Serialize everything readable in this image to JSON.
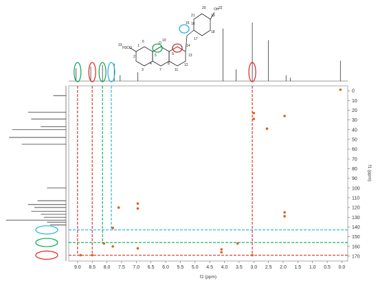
{
  "figure": {
    "x_axis_label": "f2 (ppm)",
    "y_axis_label": "f1 (ppm)"
  },
  "molecule": {
    "atom_labels": [
      "1",
      "2",
      "3",
      "4",
      "5",
      "6",
      "7",
      "8",
      "9",
      "10",
      "11",
      "12",
      "13",
      "14",
      "15",
      "16",
      "17",
      "18",
      "19",
      "20",
      "21",
      "22",
      "23"
    ],
    "methoxy_label": "H3CO",
    "methoxy_number": "23",
    "hydroxyl_label": "OH",
    "ring_oxygen": "O",
    "highlights": [
      {
        "atom": "5",
        "color": "#00a651"
      },
      {
        "atom": "9",
        "color": "#e0201b"
      },
      {
        "atom": "15",
        "color": "#1ab0e0"
      },
      {
        "atom": "19",
        "color": "#4a78c0"
      }
    ]
  },
  "chart_data": {
    "type": "scatter",
    "title": "",
    "xlabel": "f2 (ppm)",
    "ylabel": "f1 (ppm)",
    "xlim": [
      9.3,
      -0.2
    ],
    "ylim": [
      -5,
      175
    ],
    "x_ticks": [
      "9.0",
      "8.5",
      "8.0",
      "7.5",
      "7.0",
      "6.5",
      "6.0",
      "5.5",
      "5.0",
      "4.5",
      "4.0",
      "3.5",
      "3.0",
      "2.5",
      "2.0",
      "1.5",
      "1.0",
      "0.5",
      "0.0"
    ],
    "y_ticks": [
      "0",
      "10",
      "20",
      "30",
      "40",
      "50",
      "60",
      "70",
      "80",
      "90",
      "100",
      "110",
      "120",
      "130",
      "140",
      "150",
      "160",
      "170"
    ],
    "cross_peaks": [
      {
        "x": 0.05,
        "y": -1
      },
      {
        "x": 1.95,
        "y": 26
      },
      {
        "x": 2.55,
        "y": 39
      },
      {
        "x": 3.0,
        "y": 23
      },
      {
        "x": 3.0,
        "y": 29
      },
      {
        "x": 6.95,
        "y": 116
      },
      {
        "x": 6.95,
        "y": 121
      },
      {
        "x": 7.6,
        "y": 120
      },
      {
        "x": 7.8,
        "y": 141
      },
      {
        "x": 7.8,
        "y": 160
      },
      {
        "x": 8.1,
        "y": 157
      },
      {
        "x": 8.9,
        "y": 169
      },
      {
        "x": 8.5,
        "y": 169
      },
      {
        "x": 4.1,
        "y": 163
      },
      {
        "x": 4.1,
        "y": 166
      },
      {
        "x": 3.05,
        "y": 169
      },
      {
        "x": 1.95,
        "y": 125
      },
      {
        "x": 1.95,
        "y": 129
      },
      {
        "x": 6.95,
        "y": 162
      },
      {
        "x": 3.55,
        "y": 157
      }
    ],
    "correlation_lines": [
      {
        "x": 9.0,
        "y": 169,
        "color": "#e0201b"
      },
      {
        "x": 8.5,
        "y": 169,
        "color": "#e0201b"
      },
      {
        "x": 8.15,
        "y": 157,
        "color": "#00a651"
      },
      {
        "x": 7.85,
        "y": 143,
        "color": "#1ab0e0"
      },
      {
        "x": 3.05,
        "y": 169,
        "color": "#e0201b"
      }
    ],
    "horizontal_lines": [
      {
        "y": 143,
        "color": "#1ab0e0"
      },
      {
        "y": 156,
        "color": "#00a651"
      },
      {
        "y": 169,
        "color": "#e0201b"
      }
    ],
    "top_spectrum_peaks": [
      {
        "x": 9.05,
        "h": 0.22
      },
      {
        "x": 8.55,
        "h": 0.25
      },
      {
        "x": 8.15,
        "h": 0.28
      },
      {
        "x": 7.75,
        "h": 0.3
      },
      {
        "x": 7.55,
        "h": 0.1
      },
      {
        "x": 6.95,
        "h": 0.15
      },
      {
        "x": 4.05,
        "h": 0.9
      },
      {
        "x": 3.6,
        "h": 0.2
      },
      {
        "x": 3.05,
        "h": 1.0
      },
      {
        "x": 2.5,
        "h": 0.7
      },
      {
        "x": 1.9,
        "h": 0.1
      },
      {
        "x": 1.75,
        "h": 0.06
      },
      {
        "x": 0.05,
        "h": 0.35
      }
    ],
    "side_spectrum_peaks": [
      {
        "y": 5,
        "h": 0.2
      },
      {
        "y": 22,
        "h": 0.6
      },
      {
        "y": 29,
        "h": 0.55
      },
      {
        "y": 37,
        "h": 0.4
      },
      {
        "y": 40,
        "h": 0.85
      },
      {
        "y": 48,
        "h": 0.9
      },
      {
        "y": 55,
        "h": 0.7
      },
      {
        "y": 100,
        "h": 0.3
      },
      {
        "y": 113,
        "h": 0.45
      },
      {
        "y": 117,
        "h": 0.6
      },
      {
        "y": 120,
        "h": 0.5
      },
      {
        "y": 124,
        "h": 0.55
      },
      {
        "y": 127,
        "h": 0.4
      },
      {
        "y": 130,
        "h": 0.35
      },
      {
        "y": 133,
        "h": 0.95
      },
      {
        "y": 135,
        "h": 0.3
      },
      {
        "y": 138,
        "h": 0.25
      }
    ],
    "side_markers": [
      {
        "y": 143,
        "color": "#1ab0e0"
      },
      {
        "y": 156,
        "color": "#00a651"
      },
      {
        "y": 169,
        "color": "#e0201b"
      }
    ],
    "top_markers": [
      {
        "x": 9.0,
        "color": "#00a651"
      },
      {
        "x": 8.5,
        "color": "#e0201b"
      },
      {
        "x": 8.15,
        "color": "#00a651"
      },
      {
        "x": 7.85,
        "color": "#1ab0e0"
      },
      {
        "x": 3.05,
        "color": "#e0201b"
      }
    ]
  }
}
